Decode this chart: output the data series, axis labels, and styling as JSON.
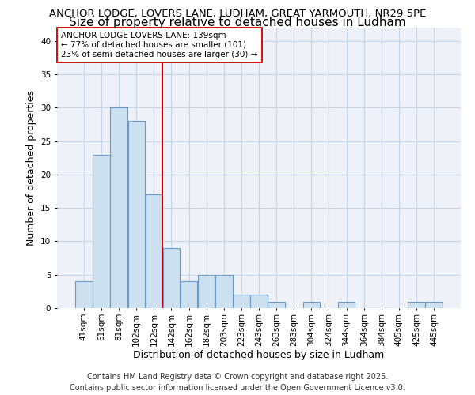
{
  "title_line1": "ANCHOR LODGE, LOVERS LANE, LUDHAM, GREAT YARMOUTH, NR29 5PE",
  "title_line2": "Size of property relative to detached houses in Ludham",
  "xlabel": "Distribution of detached houses by size in Ludham",
  "ylabel": "Number of detached properties",
  "bar_labels": [
    "41sqm",
    "61sqm",
    "81sqm",
    "102sqm",
    "122sqm",
    "142sqm",
    "162sqm",
    "182sqm",
    "203sqm",
    "223sqm",
    "243sqm",
    "263sqm",
    "283sqm",
    "304sqm",
    "324sqm",
    "344sqm",
    "364sqm",
    "384sqm",
    "405sqm",
    "425sqm",
    "445sqm"
  ],
  "bar_values": [
    4,
    23,
    30,
    28,
    17,
    9,
    4,
    5,
    5,
    2,
    2,
    1,
    0,
    1,
    0,
    1,
    0,
    0,
    0,
    1,
    1
  ],
  "bar_color": "#cce0f0",
  "bar_edgecolor": "#6699cc",
  "annotation_title": "ANCHOR LODGE LOVERS LANE: 139sqm",
  "annotation_line2": "← 77% of detached houses are smaller (101)",
  "annotation_line3": "23% of semi-detached houses are larger (30) →",
  "vline_color": "#cc0000",
  "ylim": [
    0,
    42
  ],
  "yticks": [
    0,
    5,
    10,
    15,
    20,
    25,
    30,
    35,
    40
  ],
  "footer_line1": "Contains HM Land Registry data © Crown copyright and database right 2025.",
  "footer_line2": "Contains public sector information licensed under the Open Government Licence v3.0.",
  "bg_color": "#ffffff",
  "plot_bg_color": "#eef2f8",
  "grid_color": "#c8d4e8",
  "title1_fontsize": 9.5,
  "title2_fontsize": 11,
  "axis_label_fontsize": 9,
  "tick_fontsize": 7.5,
  "annotation_fontsize": 7.5,
  "footer_fontsize": 7
}
